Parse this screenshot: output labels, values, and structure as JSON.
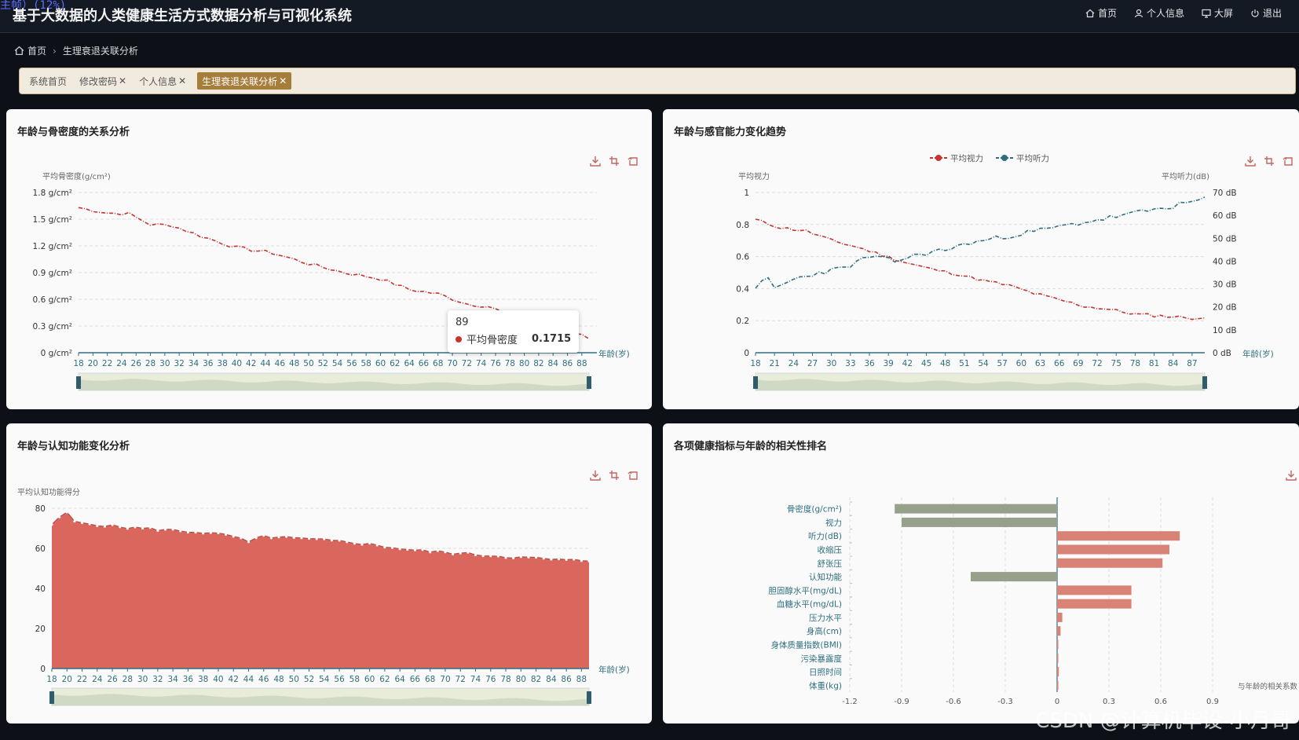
{
  "header": {
    "title": "基于大数据的人类健康生活方式数据分析与可视化系统",
    "overlay_text": "主帧）(12%)",
    "nav": [
      {
        "icon": "home-icon",
        "label": "首页"
      },
      {
        "icon": "user-icon",
        "label": "个人信息"
      },
      {
        "icon": "monitor-icon",
        "label": "大屏"
      },
      {
        "icon": "power-icon",
        "label": "退出"
      }
    ]
  },
  "breadcrumb": {
    "home": "首页",
    "current": "生理衰退关联分析"
  },
  "tags": [
    {
      "label": "系统首页",
      "closable": false,
      "active": false
    },
    {
      "label": "修改密码",
      "closable": true,
      "active": false
    },
    {
      "label": "个人信息",
      "closable": true,
      "active": false
    },
    {
      "label": "生理衰退关联分析",
      "closable": true,
      "active": true
    }
  ],
  "watermark": "CSDN @计算机毕设-小月哥",
  "panels": {
    "bone": {
      "title": "年龄与骨密度的关系分析"
    },
    "senses": {
      "title": "年龄与感官能力变化趋势"
    },
    "cognitive": {
      "title": "年龄与认知功能变化分析"
    },
    "corr": {
      "title": "各项健康指标与年龄的相关性排名"
    }
  },
  "tooltip": {
    "x": "89",
    "series": "平均骨密度",
    "value": "0.1715"
  },
  "chart_data": [
    {
      "type": "line",
      "title": "年龄与骨密度的关系分析",
      "series_color": "#c23531",
      "ylabel": "平均骨密度(g/cm²)",
      "xlabel": "年龄(岁)",
      "ylim": [
        0,
        1.8
      ],
      "yticks": [
        "0 g/cm²",
        "0.3 g/cm²",
        "0.6 g/cm²",
        "0.9 g/cm²",
        "1.2 g/cm²",
        "1.5 g/cm²",
        "1.8 g/cm²"
      ],
      "x_start": 18,
      "x_end": 89,
      "xtick_labels": [
        "18",
        "20",
        "22",
        "24",
        "26",
        "28",
        "30",
        "32",
        "34",
        "36",
        "38",
        "40",
        "42",
        "44",
        "46",
        "48",
        "50",
        "52",
        "54",
        "56",
        "58",
        "60",
        "62",
        "64",
        "66",
        "68",
        "70",
        "72",
        "74",
        "76",
        "78",
        "80",
        "82",
        "84",
        "86",
        "88"
      ],
      "keypoints": [
        [
          18,
          1.63
        ],
        [
          22,
          1.57
        ],
        [
          25,
          1.56
        ],
        [
          28,
          1.44
        ],
        [
          31,
          1.43
        ],
        [
          35,
          1.31
        ],
        [
          40,
          1.18
        ],
        [
          45,
          1.12
        ],
        [
          50,
          1.0
        ],
        [
          55,
          0.9
        ],
        [
          60,
          0.83
        ],
        [
          64,
          0.71
        ],
        [
          68,
          0.66
        ],
        [
          72,
          0.55
        ],
        [
          75,
          0.52
        ],
        [
          78,
          0.42
        ],
        [
          82,
          0.33
        ],
        [
          86,
          0.25
        ],
        [
          89,
          0.17
        ]
      ]
    },
    {
      "type": "line",
      "title": "年龄与感官能力变化趋势",
      "legend": [
        "平均视力",
        "平均听力"
      ],
      "legend_placement": "top-center",
      "ylabel_left": "平均视力",
      "ylabel_right": "平均听力(dB)",
      "xlabel": "年龄(岁)",
      "ylim_left": [
        0,
        1
      ],
      "yticks_left": [
        "0",
        "0.2",
        "0.4",
        "0.6",
        "0.8",
        "1"
      ],
      "ylim_right": [
        0,
        70
      ],
      "yticks_right": [
        "0 dB",
        "10 dB",
        "20 dB",
        "30 dB",
        "40 dB",
        "50 dB",
        "60 dB",
        "70 dB"
      ],
      "x_start": 18,
      "x_end": 89,
      "xtick_labels": [
        "18",
        "21",
        "24",
        "27",
        "30",
        "33",
        "36",
        "39",
        "42",
        "45",
        "48",
        "51",
        "54",
        "57",
        "60",
        "63",
        "66",
        "69",
        "72",
        "75",
        "78",
        "81",
        "84",
        "87"
      ],
      "series": [
        {
          "name": "平均视力",
          "color": "#c23531",
          "axis": "left",
          "keypoints": [
            [
              18,
              0.83
            ],
            [
              22,
              0.78
            ],
            [
              26,
              0.76
            ],
            [
              30,
              0.7
            ],
            [
              34,
              0.66
            ],
            [
              38,
              0.61
            ],
            [
              42,
              0.56
            ],
            [
              46,
              0.52
            ],
            [
              50,
              0.49
            ],
            [
              54,
              0.45
            ],
            [
              58,
              0.42
            ],
            [
              62,
              0.37
            ],
            [
              66,
              0.33
            ],
            [
              70,
              0.29
            ],
            [
              74,
              0.27
            ],
            [
              78,
              0.24
            ],
            [
              82,
              0.23
            ],
            [
              86,
              0.22
            ],
            [
              89,
              0.21
            ]
          ]
        },
        {
          "name": "平均听力",
          "color": "#2f6f80",
          "axis": "right",
          "keypoints": [
            [
              18,
              29
            ],
            [
              20,
              32
            ],
            [
              21,
              28
            ],
            [
              24,
              32
            ],
            [
              28,
              35
            ],
            [
              32,
              37
            ],
            [
              36,
              42
            ],
            [
              40,
              40
            ],
            [
              44,
              43
            ],
            [
              48,
              45
            ],
            [
              52,
              48
            ],
            [
              56,
              50
            ],
            [
              60,
              52
            ],
            [
              64,
              54
            ],
            [
              68,
              56
            ],
            [
              72,
              58
            ],
            [
              76,
              60
            ],
            [
              80,
              62
            ],
            [
              84,
              64
            ],
            [
              87,
              66
            ],
            [
              89,
              67
            ]
          ]
        }
      ]
    },
    {
      "type": "area",
      "title": "年龄与认知功能变化分析",
      "color": "#d9675e",
      "ylabel": "平均认知功能得分",
      "xlabel": "年龄(岁)",
      "ylim": [
        0,
        80
      ],
      "yticks": [
        "0",
        "20",
        "40",
        "60",
        "80"
      ],
      "x_start": 18,
      "x_end": 89,
      "xtick_labels": [
        "18",
        "20",
        "22",
        "24",
        "26",
        "28",
        "30",
        "32",
        "34",
        "36",
        "38",
        "40",
        "42",
        "44",
        "46",
        "48",
        "50",
        "52",
        "54",
        "56",
        "58",
        "60",
        "62",
        "64",
        "66",
        "68",
        "70",
        "72",
        "74",
        "76",
        "78",
        "80",
        "82",
        "84",
        "86",
        "88"
      ],
      "keypoints": [
        [
          18,
          72
        ],
        [
          20,
          78
        ],
        [
          21,
          73
        ],
        [
          24,
          72
        ],
        [
          26,
          71
        ],
        [
          30,
          70
        ],
        [
          34,
          69
        ],
        [
          38,
          68
        ],
        [
          42,
          66
        ],
        [
          44,
          63
        ],
        [
          46,
          66
        ],
        [
          50,
          65
        ],
        [
          54,
          64
        ],
        [
          58,
          63
        ],
        [
          62,
          61
        ],
        [
          66,
          59
        ],
        [
          70,
          58
        ],
        [
          74,
          57
        ],
        [
          78,
          56
        ],
        [
          82,
          55
        ],
        [
          86,
          54
        ],
        [
          89,
          54
        ]
      ]
    },
    {
      "type": "bar",
      "orientation": "horizontal",
      "title": "各项健康指标与年龄的相关性排名",
      "xlabel": "与年龄的相关系数",
      "xlim": [
        -1.2,
        0.9
      ],
      "xticks": [
        "-1.2",
        "-0.9",
        "-0.6",
        "-0.3",
        "0",
        "0.3",
        "0.6",
        "0.9"
      ],
      "negative_color": "#96a08a",
      "positive_color": "#d98377",
      "categories": [
        "骨密度(g/cm²)",
        "视力",
        "听力(dB)",
        "收缩压",
        "舒张压",
        "认知功能",
        "胆固醇水平(mg/dL)",
        "血糖水平(mg/dL)",
        "压力水平",
        "身高(cm)",
        "身体质量指数(BMI)",
        "污染暴露度",
        "日照时间",
        "体重(kg)"
      ],
      "values": [
        -0.94,
        -0.9,
        0.71,
        0.65,
        0.61,
        -0.5,
        0.43,
        0.43,
        0.03,
        0.02,
        0.005,
        0.004,
        0.01,
        0.005
      ]
    }
  ]
}
